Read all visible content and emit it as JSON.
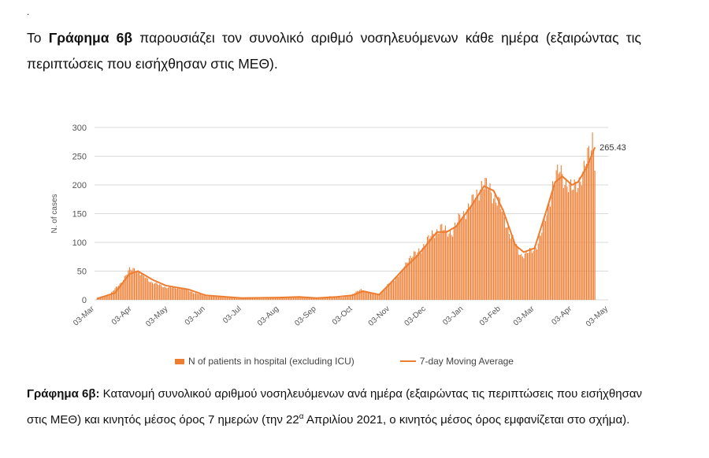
{
  "page": {
    "dot": ".",
    "intro_prefix": "Το ",
    "intro_bold": "Γράφημα 6β",
    "intro_rest": " παρουσιάζει τον συνολικό αριθμό νοσηλευόμενων κάθε ημέρα (εξαιρώντας τις περιπτώσεις που εισήχθησαν στις ΜΕΘ).",
    "caption_bold": "Γράφημα 6β:",
    "caption_part1": " Κατανομή συνολικού αριθμού νοσηλευόμενων ανά ημέρα (εξαιρώντας τις περιπτώσεις που εισήχθησαν στις ΜΕΘ) και κινητός μέσος όρος 7 ημερών (την 22",
    "caption_sup": "α",
    "caption_part2": " Απριλίου 2021, ο κινητός μέσος όρος εμφανίζεται στο σχήμα)."
  },
  "chart_data": {
    "type": "bar",
    "ylabel": "N. of cases",
    "ylim": [
      0,
      300
    ],
    "yticks": [
      0,
      50,
      100,
      150,
      200,
      250,
      300
    ],
    "grid": true,
    "x_tick_labels": [
      "03-Mar",
      "03-Apr",
      "03-May",
      "03-Jun",
      "03-Jul",
      "03-Aug",
      "03-Sep",
      "03-Oct",
      "03-Nov",
      "03-Dec",
      "03-Jan",
      "03-Feb",
      "03-Mar",
      "03-Apr",
      "03-May"
    ],
    "x_tick_dates": [
      "2020-03-03",
      "2020-04-03",
      "2020-05-03",
      "2020-06-03",
      "2020-07-03",
      "2020-08-03",
      "2020-09-03",
      "2020-10-03",
      "2020-11-03",
      "2020-12-03",
      "2021-01-03",
      "2021-02-03",
      "2021-03-03",
      "2021-04-03",
      "2021-05-03"
    ],
    "x_range": [
      "2020-03-03",
      "2021-05-03"
    ],
    "bar_color": "#ed7d31",
    "line_color": "#ed7d31",
    "legend_position": "bottom",
    "annotation": {
      "text": "265.43",
      "date": "2021-04-22",
      "value": 265.43
    },
    "series": [
      {
        "name": "N of patients in hospital (excluding ICU)",
        "type": "bar",
        "start_date": "2020-03-05",
        "end_date": "2021-04-22",
        "anchors": [
          [
            "2020-03-05",
            2
          ],
          [
            "2020-03-15",
            8
          ],
          [
            "2020-03-25",
            30
          ],
          [
            "2020-04-01",
            52
          ],
          [
            "2020-04-06",
            55
          ],
          [
            "2020-04-10",
            45
          ],
          [
            "2020-04-20",
            30
          ],
          [
            "2020-05-01",
            22
          ],
          [
            "2020-05-15",
            20
          ],
          [
            "2020-05-25",
            12
          ],
          [
            "2020-06-03",
            7
          ],
          [
            "2020-06-20",
            5
          ],
          [
            "2020-07-03",
            3
          ],
          [
            "2020-07-20",
            2
          ],
          [
            "2020-08-03",
            4
          ],
          [
            "2020-08-15",
            6
          ],
          [
            "2020-08-25",
            4
          ],
          [
            "2020-09-03",
            3
          ],
          [
            "2020-09-15",
            6
          ],
          [
            "2020-09-25",
            4
          ],
          [
            "2020-10-03",
            10
          ],
          [
            "2020-10-10",
            18
          ],
          [
            "2020-10-18",
            12
          ],
          [
            "2020-10-25",
            8
          ],
          [
            "2020-11-03",
            30
          ],
          [
            "2020-11-12",
            45
          ],
          [
            "2020-11-18",
            72
          ],
          [
            "2020-11-25",
            80
          ],
          [
            "2020-12-03",
            100
          ],
          [
            "2020-12-10",
            118
          ],
          [
            "2020-12-15",
            125
          ],
          [
            "2020-12-20",
            118
          ],
          [
            "2020-12-25",
            120
          ],
          [
            "2021-01-01",
            145
          ],
          [
            "2021-01-10",
            168
          ],
          [
            "2021-01-18",
            200
          ],
          [
            "2021-01-24",
            195
          ],
          [
            "2021-02-01",
            170
          ],
          [
            "2021-02-10",
            120
          ],
          [
            "2021-02-16",
            90
          ],
          [
            "2021-02-20",
            78
          ],
          [
            "2021-03-01",
            85
          ],
          [
            "2021-03-06",
            100
          ],
          [
            "2021-03-12",
            140
          ],
          [
            "2021-03-18",
            200
          ],
          [
            "2021-03-24",
            225
          ],
          [
            "2021-03-28",
            210
          ],
          [
            "2021-04-03",
            190
          ],
          [
            "2021-04-08",
            205
          ],
          [
            "2021-04-13",
            225
          ],
          [
            "2021-04-18",
            260
          ],
          [
            "2021-04-20",
            285
          ],
          [
            "2021-04-22",
            248
          ]
        ]
      },
      {
        "name": "7-day Moving Average",
        "type": "line",
        "anchors": [
          [
            "2020-03-05",
            2
          ],
          [
            "2020-03-20",
            12
          ],
          [
            "2020-04-01",
            45
          ],
          [
            "2020-04-08",
            50
          ],
          [
            "2020-04-20",
            35
          ],
          [
            "2020-05-01",
            25
          ],
          [
            "2020-05-20",
            18
          ],
          [
            "2020-06-03",
            8
          ],
          [
            "2020-07-03",
            3
          ],
          [
            "2020-08-03",
            4
          ],
          [
            "2020-08-20",
            5
          ],
          [
            "2020-09-03",
            3
          ],
          [
            "2020-09-20",
            5
          ],
          [
            "2020-10-03",
            8
          ],
          [
            "2020-10-12",
            15
          ],
          [
            "2020-10-25",
            9
          ],
          [
            "2020-11-03",
            28
          ],
          [
            "2020-11-15",
            55
          ],
          [
            "2020-11-25",
            75
          ],
          [
            "2020-12-03",
            95
          ],
          [
            "2020-12-12",
            118
          ],
          [
            "2020-12-20",
            118
          ],
          [
            "2020-12-28",
            128
          ],
          [
            "2021-01-10",
            165
          ],
          [
            "2021-01-20",
            198
          ],
          [
            "2021-01-28",
            190
          ],
          [
            "2021-02-05",
            155
          ],
          [
            "2021-02-15",
            95
          ],
          [
            "2021-02-22",
            83
          ],
          [
            "2021-03-03",
            90
          ],
          [
            "2021-03-12",
            150
          ],
          [
            "2021-03-20",
            205
          ],
          [
            "2021-03-26",
            215
          ],
          [
            "2021-04-03",
            200
          ],
          [
            "2021-04-08",
            205
          ],
          [
            "2021-04-15",
            230
          ],
          [
            "2021-04-22",
            265.43
          ]
        ]
      }
    ]
  }
}
